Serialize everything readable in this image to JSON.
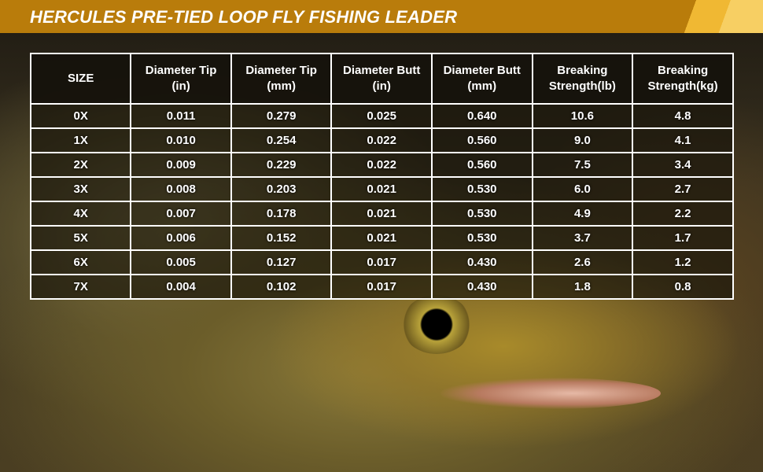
{
  "title": "HERCULES PRE-TIED LOOP FLY FISHING LEADER",
  "colors": {
    "banner": "#b97c0b",
    "text": "#ffffff"
  },
  "table": {
    "headers": [
      [
        "SIZE",
        ""
      ],
      [
        "Diameter Tip",
        "(in)"
      ],
      [
        "Diameter Tip",
        "(mm)"
      ],
      [
        "Diameter Butt",
        "(in)"
      ],
      [
        "Diameter Butt",
        "(mm)"
      ],
      [
        "Breaking",
        "Strength(lb)"
      ],
      [
        "Breaking",
        "Strength(kg)"
      ]
    ],
    "rows": [
      [
        "0X",
        "0.011",
        "0.279",
        "0.025",
        "0.640",
        "10.6",
        "4.8"
      ],
      [
        "1X",
        "0.010",
        "0.254",
        "0.022",
        "0.560",
        "9.0",
        "4.1"
      ],
      [
        "2X",
        "0.009",
        "0.229",
        "0.022",
        "0.560",
        "7.5",
        "3.4"
      ],
      [
        "3X",
        "0.008",
        "0.203",
        "0.021",
        "0.530",
        "6.0",
        "2.7"
      ],
      [
        "4X",
        "0.007",
        "0.178",
        "0.021",
        "0.530",
        "4.9",
        "2.2"
      ],
      [
        "5X",
        "0.006",
        "0.152",
        "0.021",
        "0.530",
        "3.7",
        "1.7"
      ],
      [
        "6X",
        "0.005",
        "0.127",
        "0.017",
        "0.430",
        "2.6",
        "1.2"
      ],
      [
        "7X",
        "0.004",
        "0.102",
        "0.017",
        "0.430",
        "1.8",
        "0.8"
      ]
    ]
  }
}
